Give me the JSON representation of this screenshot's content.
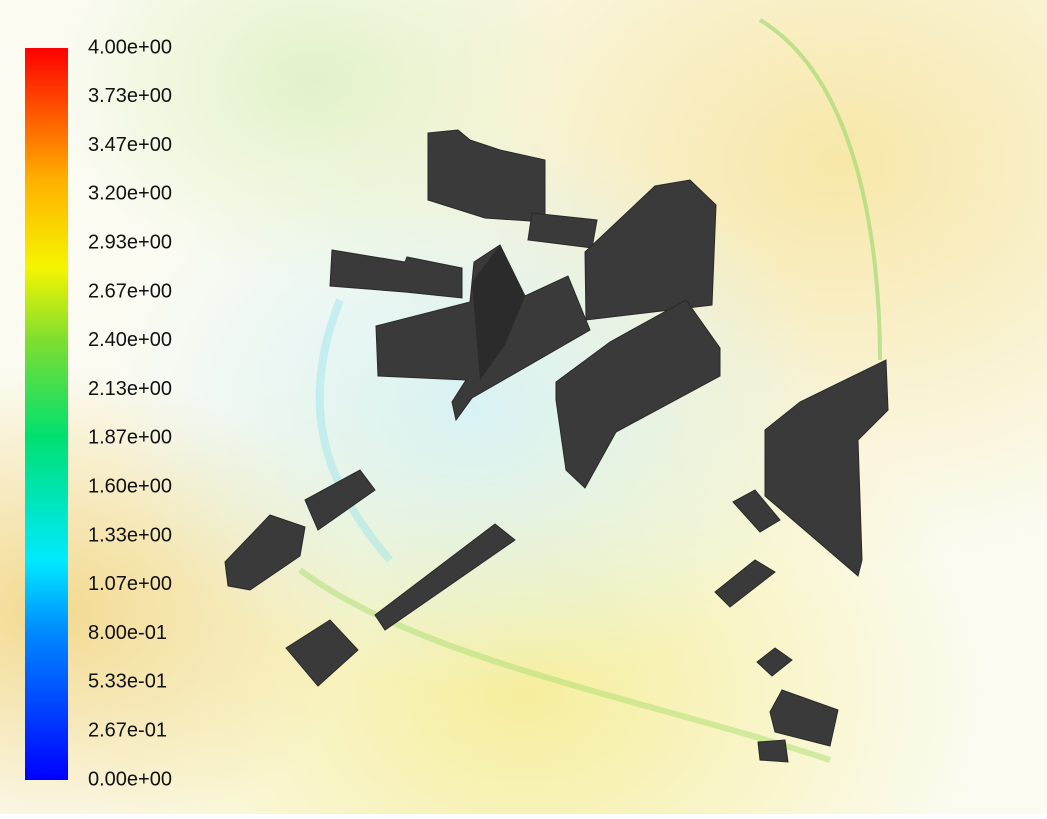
{
  "legend": {
    "labels": [
      "4.00e+00",
      "3.73e+00",
      "3.47e+00",
      "3.20e+00",
      "2.93e+00",
      "2.67e+00",
      "2.40e+00",
      "2.13e+00",
      "1.87e+00",
      "1.60e+00",
      "1.33e+00",
      "1.07e+00",
      "8.00e-01",
      "5.33e-01",
      "2.67e-01",
      "0.00e+00"
    ]
  }
}
